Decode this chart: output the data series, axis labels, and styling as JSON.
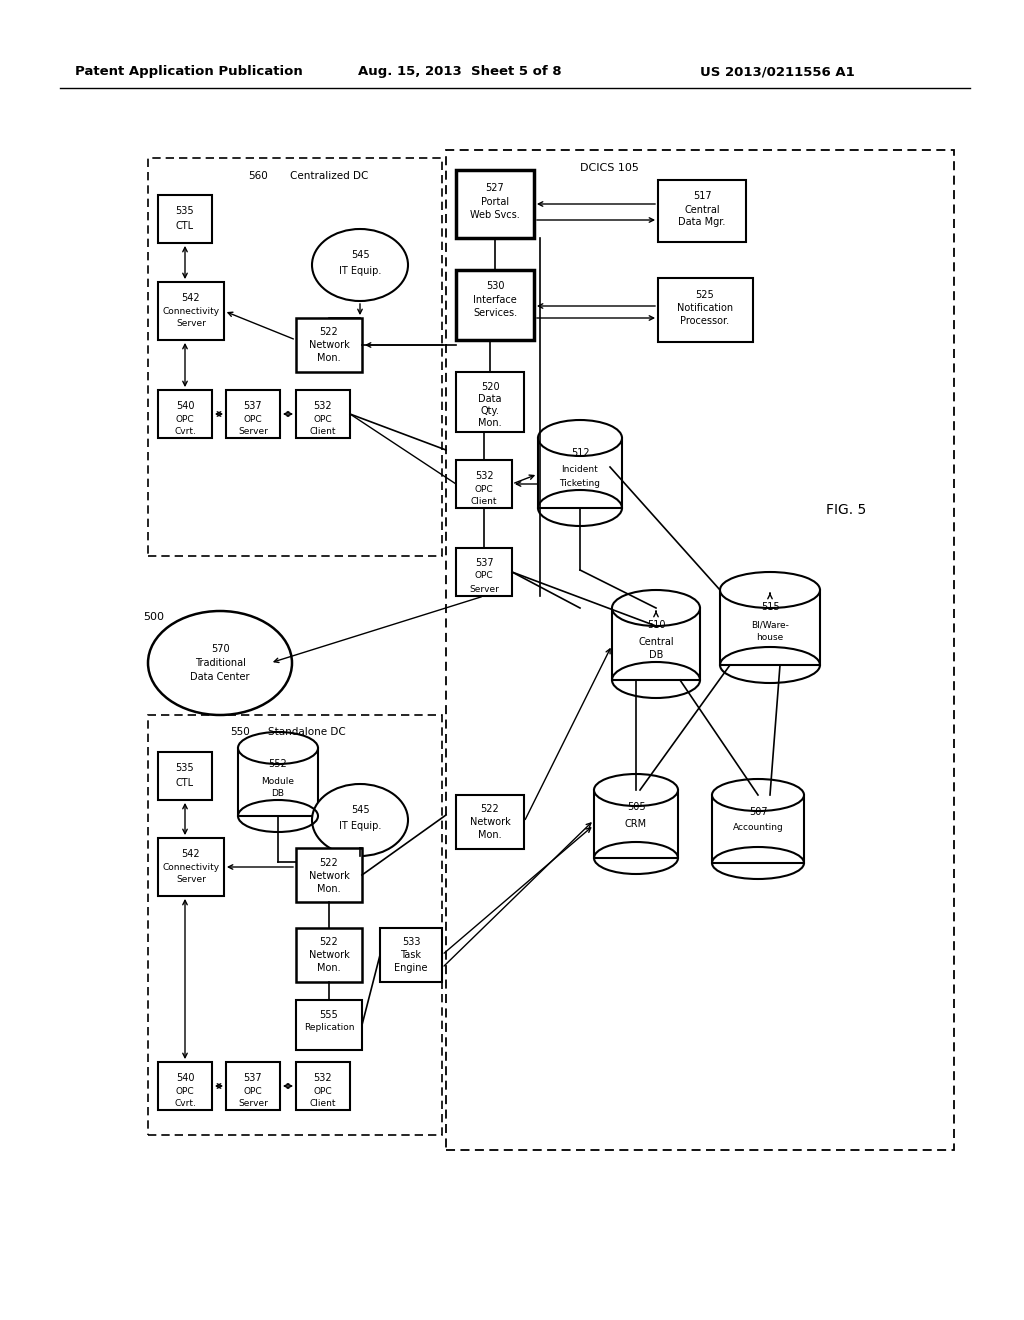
{
  "title_left": "Patent Application Publication",
  "title_mid": "Aug. 15, 2013  Sheet 5 of 8",
  "title_right": "US 2013/0211556 A1",
  "fig_label": "FIG. 5",
  "background": "#ffffff"
}
